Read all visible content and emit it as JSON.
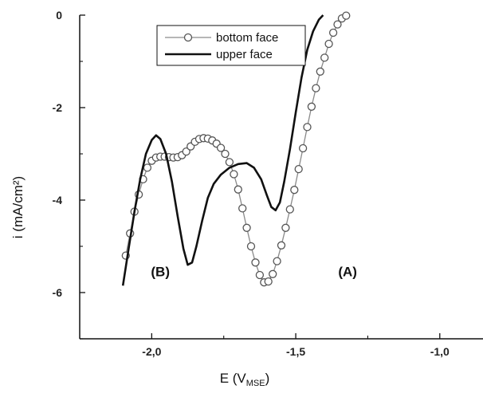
{
  "chart_data": {
    "type": "line",
    "xlabel": "E (V",
    "xlabel_sub": "MSE",
    "xlabel_close": ")",
    "ylabel": "i (mA/cm²)",
    "xlim": [
      -2.25,
      -0.85
    ],
    "ylim": [
      -7,
      0
    ],
    "x_ticks": [
      -2.0,
      -1.5,
      -1.0
    ],
    "x_tick_labels": [
      "-2,0",
      "-1,5",
      "-1,0"
    ],
    "y_ticks": [
      0,
      -2,
      -4,
      -6
    ],
    "y_tick_labels": [
      "0",
      "-2",
      "-4",
      "-6"
    ],
    "grid": false,
    "legend_position": "top-center",
    "series": [
      {
        "name": "bottom face",
        "style": "line-with-circles",
        "color": "#8a8a8a",
        "marker_face": "#ffffff",
        "points": [
          [
            -2.09,
            -5.2
          ],
          [
            -2.075,
            -4.72
          ],
          [
            -2.06,
            -4.25
          ],
          [
            -2.045,
            -3.88
          ],
          [
            -2.03,
            -3.55
          ],
          [
            -2.015,
            -3.3
          ],
          [
            -2.0,
            -3.15
          ],
          [
            -1.985,
            -3.08
          ],
          [
            -1.97,
            -3.06
          ],
          [
            -1.955,
            -3.06
          ],
          [
            -1.94,
            -3.07
          ],
          [
            -1.925,
            -3.08
          ],
          [
            -1.91,
            -3.07
          ],
          [
            -1.895,
            -3.03
          ],
          [
            -1.88,
            -2.95
          ],
          [
            -1.865,
            -2.84
          ],
          [
            -1.85,
            -2.74
          ],
          [
            -1.835,
            -2.68
          ],
          [
            -1.82,
            -2.66
          ],
          [
            -1.805,
            -2.67
          ],
          [
            -1.79,
            -2.71
          ],
          [
            -1.775,
            -2.78
          ],
          [
            -1.76,
            -2.87
          ],
          [
            -1.745,
            -3.0
          ],
          [
            -1.73,
            -3.18
          ],
          [
            -1.715,
            -3.44
          ],
          [
            -1.7,
            -3.77
          ],
          [
            -1.685,
            -4.18
          ],
          [
            -1.67,
            -4.6
          ],
          [
            -1.655,
            -5.0
          ],
          [
            -1.64,
            -5.35
          ],
          [
            -1.625,
            -5.62
          ],
          [
            -1.61,
            -5.78
          ],
          [
            -1.595,
            -5.76
          ],
          [
            -1.58,
            -5.6
          ],
          [
            -1.565,
            -5.32
          ],
          [
            -1.55,
            -4.98
          ],
          [
            -1.535,
            -4.6
          ],
          [
            -1.52,
            -4.2
          ],
          [
            -1.505,
            -3.78
          ],
          [
            -1.49,
            -3.33
          ],
          [
            -1.475,
            -2.88
          ],
          [
            -1.46,
            -2.42
          ],
          [
            -1.445,
            -1.98
          ],
          [
            -1.43,
            -1.58
          ],
          [
            -1.415,
            -1.22
          ],
          [
            -1.4,
            -0.92
          ],
          [
            -1.385,
            -0.62
          ],
          [
            -1.37,
            -0.38
          ],
          [
            -1.355,
            -0.2
          ],
          [
            -1.34,
            -0.07
          ],
          [
            -1.325,
            -0.01
          ]
        ]
      },
      {
        "name": "upper face",
        "style": "line",
        "color": "#111111",
        "points": [
          [
            -2.1,
            -5.85
          ],
          [
            -2.08,
            -5.05
          ],
          [
            -2.06,
            -4.25
          ],
          [
            -2.04,
            -3.55
          ],
          [
            -2.02,
            -3.0
          ],
          [
            -2.0,
            -2.7
          ],
          [
            -1.985,
            -2.6
          ],
          [
            -1.97,
            -2.68
          ],
          [
            -1.95,
            -3.0
          ],
          [
            -1.93,
            -3.6
          ],
          [
            -1.91,
            -4.35
          ],
          [
            -1.89,
            -5.05
          ],
          [
            -1.875,
            -5.4
          ],
          [
            -1.86,
            -5.35
          ],
          [
            -1.845,
            -5.0
          ],
          [
            -1.825,
            -4.45
          ],
          [
            -1.805,
            -3.95
          ],
          [
            -1.785,
            -3.65
          ],
          [
            -1.76,
            -3.45
          ],
          [
            -1.73,
            -3.3
          ],
          [
            -1.7,
            -3.22
          ],
          [
            -1.67,
            -3.2
          ],
          [
            -1.645,
            -3.3
          ],
          [
            -1.62,
            -3.55
          ],
          [
            -1.6,
            -3.9
          ],
          [
            -1.585,
            -4.15
          ],
          [
            -1.57,
            -4.22
          ],
          [
            -1.555,
            -4.05
          ],
          [
            -1.54,
            -3.6
          ],
          [
            -1.52,
            -2.9
          ],
          [
            -1.5,
            -2.1
          ],
          [
            -1.48,
            -1.35
          ],
          [
            -1.46,
            -0.75
          ],
          [
            -1.44,
            -0.35
          ],
          [
            -1.42,
            -0.1
          ],
          [
            -1.405,
            0.0
          ]
        ]
      }
    ],
    "annotations": [
      {
        "text": "(B)",
        "x": -1.97,
        "y": -5.65
      },
      {
        "text": "(A)",
        "x": -1.32,
        "y": -5.65
      }
    ]
  }
}
